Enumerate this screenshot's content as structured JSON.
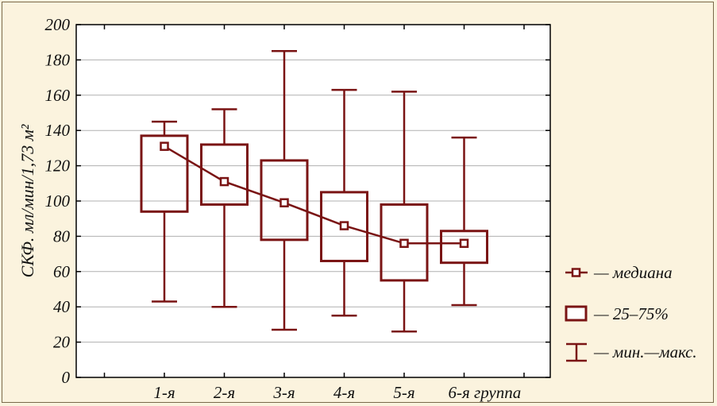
{
  "chart_data": {
    "type": "boxplot",
    "ylabel": "СКФ. мл/мин/1,73 м²",
    "ylim": [
      0,
      200
    ],
    "yticks": [
      0,
      20,
      40,
      60,
      80,
      100,
      120,
      140,
      160,
      180,
      200
    ],
    "categories": [
      "1-я",
      "2-я",
      "3-я",
      "4-я",
      "5-я",
      "6-я группа"
    ],
    "series": [
      {
        "name": "— медиана",
        "values": [
          131,
          111,
          99,
          86,
          76,
          76
        ]
      },
      {
        "name": "— 25–75%",
        "q1": [
          94,
          98,
          78,
          66,
          55,
          65
        ],
        "q3": [
          137,
          132,
          123,
          105,
          98,
          83
        ]
      },
      {
        "name": "— мин.—макс.",
        "min": [
          43,
          40,
          27,
          35,
          26,
          41
        ],
        "max": [
          145,
          152,
          185,
          163,
          162,
          136
        ]
      }
    ],
    "grid": true,
    "legend_position": "right",
    "colors": {
      "series": "#7a1414",
      "grid": "#b0b0b0",
      "background": "#fbf3de",
      "plot_bg": "#ffffff"
    }
  }
}
